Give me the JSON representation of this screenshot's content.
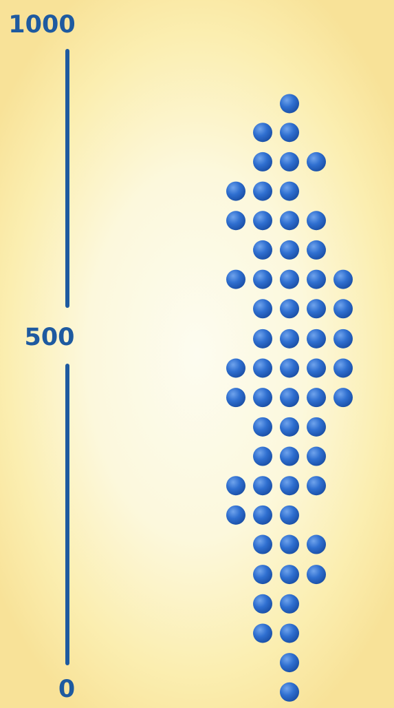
{
  "chart_data": {
    "type": "scatter",
    "subtype": "dot-plot",
    "title": "",
    "xlabel": "",
    "ylabel": "",
    "ylim": [
      0,
      1000
    ],
    "y_ticks": [
      {
        "value": 1000,
        "label": "1000"
      },
      {
        "value": 500,
        "label": "500"
      },
      {
        "value": 0,
        "label": "0"
      }
    ],
    "grid": false,
    "legend": "none",
    "dot_color": "#2f6fd0",
    "axis_color": "#1e5aa0",
    "rows": [
      {
        "y": 914,
        "count": 1,
        "offset": 0
      },
      {
        "y": 867,
        "count": 2,
        "offset": -1
      },
      {
        "y": 819,
        "count": 3,
        "offset": -1
      },
      {
        "y": 771,
        "count": 3,
        "offset": -2
      },
      {
        "y": 723,
        "count": 4,
        "offset": -2
      },
      {
        "y": 675,
        "count": 3,
        "offset": -1
      },
      {
        "y": 627,
        "count": 5,
        "offset": -2
      },
      {
        "y": 579,
        "count": 4,
        "offset": -1
      },
      {
        "y": 530,
        "count": 4,
        "offset": -1
      },
      {
        "y": 482,
        "count": 5,
        "offset": -2
      },
      {
        "y": 434,
        "count": 5,
        "offset": -2
      },
      {
        "y": 386,
        "count": 3,
        "offset": -1
      },
      {
        "y": 338,
        "count": 3,
        "offset": -1
      },
      {
        "y": 290,
        "count": 4,
        "offset": -2
      },
      {
        "y": 242,
        "count": 3,
        "offset": -2
      },
      {
        "y": 194,
        "count": 3,
        "offset": -1
      },
      {
        "y": 145,
        "count": 3,
        "offset": -1
      },
      {
        "y": 97,
        "count": 2,
        "offset": -1
      },
      {
        "y": 49,
        "count": 2,
        "offset": -1
      },
      {
        "y": 1,
        "count": 1,
        "offset": 0
      },
      {
        "y": -47,
        "count": 1,
        "offset": 0
      }
    ]
  }
}
